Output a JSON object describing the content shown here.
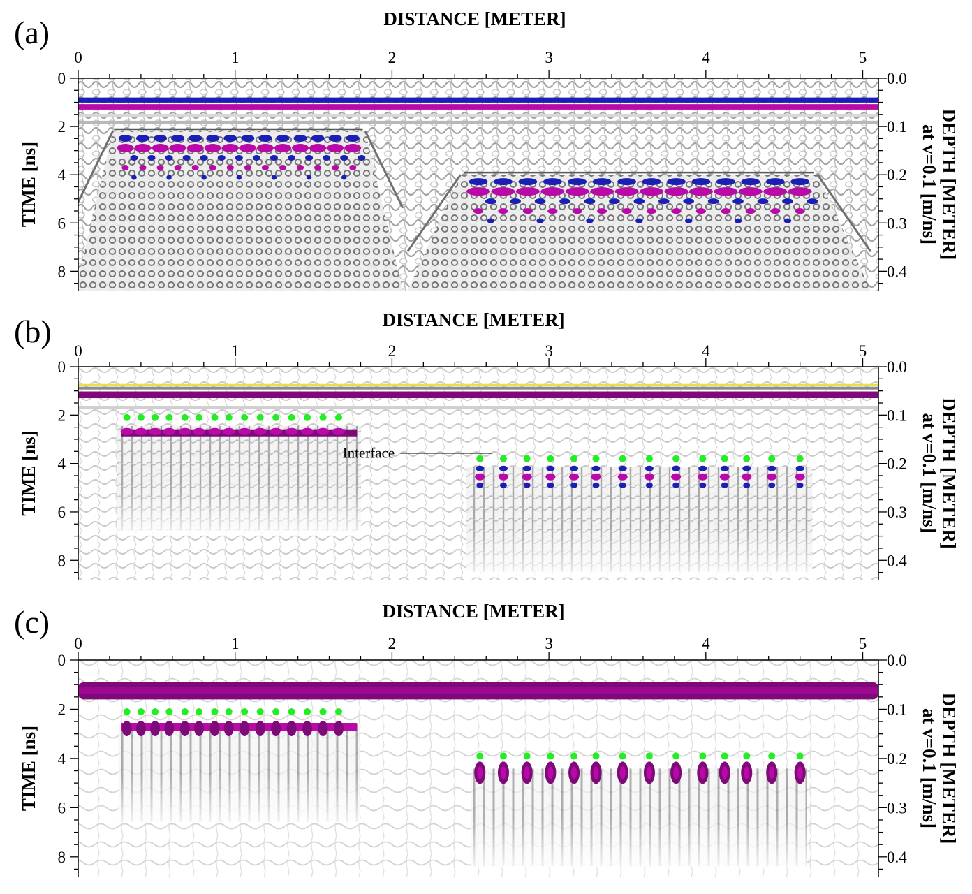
{
  "colors": {
    "blue": "#1b1fb4",
    "magenta": "#b90aa8",
    "purple": "#7d0a78",
    "green": "#22ee22",
    "yellow": "#e6e04a",
    "gray": "#8c8c8c"
  },
  "chart_data": [
    {
      "type": "heatmap",
      "panel_label": "(a)",
      "style": "raw",
      "xlabel": "DISTANCE [METER]",
      "ylabel": "TIME [ns]",
      "ylabel_right_line1": "DEPTH [METER]",
      "ylabel_right_line2": "at v=0.1 [m/ns]",
      "xlim": [
        0,
        5.1
      ],
      "ylim": [
        0,
        8.8
      ],
      "x_ticks": [
        "0",
        "1",
        "2",
        "3",
        "4",
        "5"
      ],
      "y_ticks": [
        "0",
        "2",
        "4",
        "6",
        "8"
      ],
      "y_right_ticks": [
        "0.0",
        "0.1",
        "0.2",
        "0.3",
        "0.4"
      ],
      "direct_wave_ns": [
        0.8,
        1.3
      ],
      "reflector_zones": [
        {
          "name": "shallow-rebars",
          "x_range": [
            0.3,
            1.75
          ],
          "time_ns": 2.2,
          "count": 14
        },
        {
          "name": "deep-rebars",
          "x_range": [
            2.55,
            4.6
          ],
          "time_ns": 4.0,
          "count": 14
        }
      ],
      "rebar_markers_x": [],
      "annotations": []
    },
    {
      "type": "heatmap",
      "panel_label": "(b)",
      "style": "processed",
      "xlabel": "DISTANCE [METER]",
      "ylabel": "TIME [ns]",
      "ylabel_right_line1": "DEPTH [METER]",
      "ylabel_right_line2": "at v=0.1 [m/ns]",
      "xlim": [
        0,
        5.1
      ],
      "ylim": [
        0,
        8.8
      ],
      "x_ticks": [
        "0",
        "1",
        "2",
        "3",
        "4",
        "5"
      ],
      "y_ticks": [
        "0",
        "2",
        "4",
        "6",
        "8"
      ],
      "y_right_ticks": [
        "0.0",
        "0.1",
        "0.2",
        "0.3",
        "0.4"
      ],
      "direct_wave_ns": [
        0.8,
        1.3
      ],
      "reflector_zones": [
        {
          "name": "shallow-rebars",
          "x_range": [
            0.3,
            1.75
          ],
          "time_ns": 2.1,
          "count": 15
        },
        {
          "name": "deep-rebars",
          "x_range": [
            2.55,
            4.6
          ],
          "time_ns": 3.8,
          "count": 14
        }
      ],
      "rebar_markers_x": [
        [
          0.31,
          0.4,
          0.49,
          0.58,
          0.68,
          0.77,
          0.87,
          0.96,
          1.06,
          1.16,
          1.26,
          1.36,
          1.46,
          1.56,
          1.66
        ],
        [
          2.56,
          2.71,
          2.86,
          3.01,
          3.16,
          3.3,
          3.47,
          3.64,
          3.81,
          3.98,
          4.12,
          4.26,
          4.42,
          4.6
        ]
      ],
      "annotations": [
        {
          "label": "Interface",
          "x": 2.48,
          "time_ns": 3.8
        }
      ]
    },
    {
      "type": "heatmap",
      "panel_label": "(c)",
      "style": "migrated",
      "xlabel": "DISTANCE [METER]",
      "ylabel": "TIME [ns]",
      "ylabel_right_line1": "DEPTH [METER]",
      "ylabel_right_line2": "at v=0.1 [m/ns]",
      "xlim": [
        0,
        5.1
      ],
      "ylim": [
        0,
        8.8
      ],
      "x_ticks": [
        "0",
        "1",
        "2",
        "3",
        "4",
        "5"
      ],
      "y_ticks": [
        "0",
        "2",
        "4",
        "6",
        "8"
      ],
      "y_right_ticks": [
        "0.0",
        "0.1",
        "0.2",
        "0.3",
        "0.4"
      ],
      "direct_wave_ns": [
        0.9,
        1.6
      ],
      "reflector_zones": [
        {
          "name": "shallow-rebars",
          "x_range": [
            0.3,
            1.75
          ],
          "time_ns": 2.1,
          "count": 15
        },
        {
          "name": "deep-rebars",
          "x_range": [
            2.55,
            4.6
          ],
          "time_ns": 3.9,
          "count": 14
        }
      ],
      "rebar_markers_x": [
        [
          0.31,
          0.4,
          0.49,
          0.58,
          0.68,
          0.77,
          0.87,
          0.96,
          1.06,
          1.16,
          1.26,
          1.36,
          1.46,
          1.56,
          1.66
        ],
        [
          2.56,
          2.71,
          2.86,
          3.01,
          3.16,
          3.3,
          3.47,
          3.64,
          3.81,
          3.98,
          4.12,
          4.26,
          4.42,
          4.6
        ]
      ],
      "annotations": []
    }
  ]
}
